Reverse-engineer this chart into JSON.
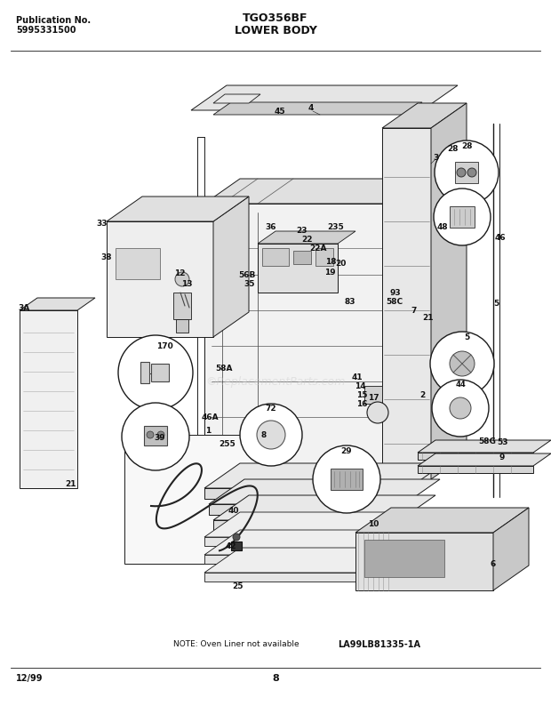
{
  "title_model": "TGO356BF",
  "title_section": "LOWER BODY",
  "pub_label": "Publication No.",
  "pub_number": "5995331500",
  "footer_date": "12/99",
  "footer_page": "8",
  "note_text": "NOTE: Oven Liner not available",
  "diagram_ref": "LA99LB81335-1A",
  "watermark": "©ReplacementParts.com",
  "bg_color": "#ffffff",
  "text_color": "#000000",
  "fig_width": 6.2,
  "fig_height": 8.04,
  "lc": "#1a1a1a",
  "lw": 0.7
}
